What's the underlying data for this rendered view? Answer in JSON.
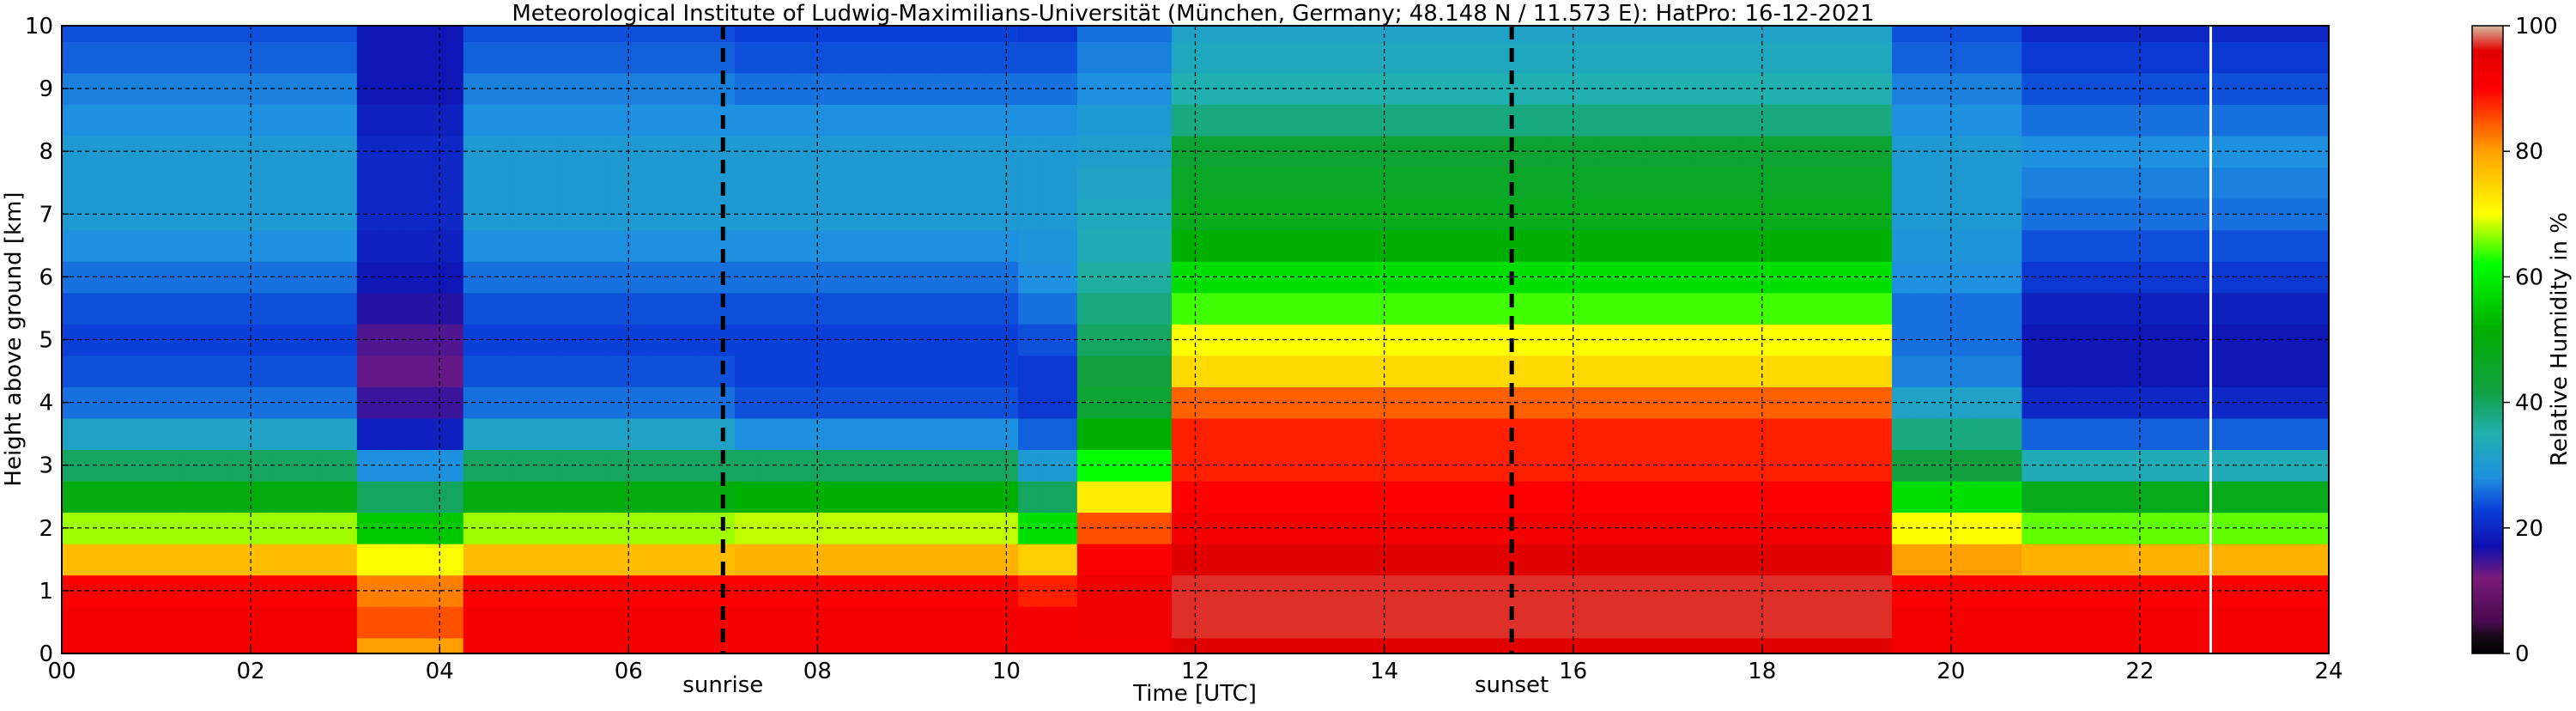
{
  "chart_data": {
    "type": "heatmap",
    "title": "Meteorological Institute of Ludwig-Maximilians-Universität (München, Germany; 48.148 N / 11.573 E):    HatPro: 16-12-2021",
    "xlabel": "Time [UTC]",
    "ylabel": "Height above ground [km]",
    "colorbar_label": "Relative Humidity in %",
    "xlim": [
      0,
      24
    ],
    "ylim": [
      0,
      10
    ],
    "clim": [
      0,
      100
    ],
    "x_ticks": [
      0,
      2,
      4,
      6,
      8,
      10,
      12,
      14,
      16,
      18,
      20,
      22,
      24
    ],
    "x_tick_labels": [
      "00",
      "02",
      "04",
      "06",
      "08",
      "10",
      "12",
      "14",
      "16",
      "18",
      "20",
      "22",
      "24"
    ],
    "y_ticks": [
      0,
      1,
      2,
      3,
      4,
      5,
      6,
      7,
      8,
      9,
      10
    ],
    "y_tick_labels": [
      "0",
      "1",
      "2",
      "3",
      "4",
      "5",
      "6",
      "7",
      "8",
      "9",
      "10"
    ],
    "colorbar_ticks": [
      0,
      20,
      40,
      60,
      80,
      100
    ],
    "colorbar_tick_labels": [
      "0",
      "20",
      "40",
      "60",
      "80",
      "100"
    ],
    "grid": true,
    "annotations": [
      {
        "x": 7.0,
        "text": "sunrise"
      },
      {
        "x": 15.35,
        "text": "sunset"
      }
    ],
    "data_gap_line_x": 22.75,
    "colormap": [
      {
        "v": 0,
        "color": "#000000"
      },
      {
        "v": 3,
        "color": "#1a0a1a"
      },
      {
        "v": 5,
        "color": "#4a0a50"
      },
      {
        "v": 12,
        "color": "#7a1a7a"
      },
      {
        "v": 17,
        "color": "#1010b0"
      },
      {
        "v": 23,
        "color": "#0a40d8"
      },
      {
        "v": 28,
        "color": "#1e90e0"
      },
      {
        "v": 35,
        "color": "#20b0b0"
      },
      {
        "v": 42,
        "color": "#10a040"
      },
      {
        "v": 52,
        "color": "#00b000"
      },
      {
        "v": 62,
        "color": "#00ff00"
      },
      {
        "v": 70,
        "color": "#ffff00"
      },
      {
        "v": 80,
        "color": "#ffa000"
      },
      {
        "v": 90,
        "color": "#ff0000"
      },
      {
        "v": 96,
        "color": "#e00000"
      },
      {
        "v": 100,
        "color": "#d8bca0"
      }
    ],
    "time_hours": [
      0,
      0.5,
      1,
      1.5,
      2,
      2.5,
      3,
      3.25,
      3.5,
      3.75,
      4,
      4.5,
      5,
      5.5,
      6,
      6.5,
      7,
      7.25,
      7.5,
      8,
      8.5,
      9,
      9.5,
      10,
      10.25,
      10.5,
      11,
      11.5,
      12,
      12.5,
      13,
      13.5,
      14,
      14.5,
      15,
      15.5,
      16,
      16.5,
      17,
      17.5,
      18,
      18.5,
      19,
      19.25,
      19.5,
      19.75,
      20,
      20.5,
      21,
      21.5,
      22,
      22.5,
      23,
      23.5,
      24
    ],
    "profiles": {
      "heights_km": [
        0,
        0.5,
        1,
        1.5,
        2,
        2.5,
        3,
        3.5,
        4,
        4.5,
        5,
        5.5,
        6,
        6.5,
        7,
        7.5,
        8,
        8.5,
        9,
        9.5,
        10
      ],
      "night_early": [
        92,
        92,
        91,
        77,
        67,
        50,
        40,
        32,
        26,
        24,
        23,
        24,
        26,
        28,
        30,
        30,
        30,
        28,
        27,
        25,
        24
      ],
      "night_dry_upper": [
        80,
        85,
        82,
        70,
        55,
        40,
        28,
        19,
        15,
        13,
        14,
        16,
        18,
        19,
        20,
        20,
        20,
        19,
        18,
        18,
        18
      ],
      "morning": [
        92,
        92,
        91,
        78,
        68,
        52,
        40,
        28,
        24,
        23,
        23,
        24,
        26,
        28,
        30,
        30,
        30,
        28,
        26,
        24,
        23
      ],
      "post_sunrise": [
        92,
        92,
        88,
        75,
        58,
        40,
        30,
        25,
        22,
        22,
        24,
        26,
        28,
        29,
        30,
        30,
        30,
        28,
        26,
        24,
        22
      ],
      "noon_rise": [
        92,
        93,
        93,
        91,
        85,
        72,
        62,
        52,
        44,
        42,
        40,
        38,
        36,
        34,
        33,
        32,
        31,
        30,
        28,
        27,
        26
      ],
      "afternoon_moist": [
        96,
        97,
        97,
        96,
        92,
        90,
        88,
        88,
        84,
        74,
        70,
        64,
        58,
        52,
        48,
        46,
        44,
        38,
        35,
        33,
        32
      ],
      "evening_decay": [
        92,
        92,
        91,
        80,
        70,
        58,
        42,
        38,
        32,
        27,
        26,
        26,
        28,
        29,
        30,
        30,
        30,
        28,
        27,
        25,
        24
      ],
      "late_night": [
        92,
        92,
        91,
        78,
        65,
        48,
        34,
        25,
        20,
        18,
        18,
        19,
        22,
        24,
        26,
        27,
        28,
        26,
        24,
        22,
        20
      ]
    },
    "profile_sequence": [
      "night_early",
      "night_early",
      "night_early",
      "night_early",
      "night_early",
      "night_early",
      "night_early",
      "night_dry_upper",
      "night_dry_upper",
      "night_dry_upper",
      "night_dry_upper",
      "night_early",
      "night_early",
      "night_early",
      "night_early",
      "night_early",
      "night_early",
      "morning",
      "morning",
      "morning",
      "morning",
      "morning",
      "morning",
      "morning",
      "post_sunrise",
      "post_sunrise",
      "noon_rise",
      "noon_rise",
      "afternoon_moist",
      "afternoon_moist",
      "afternoon_moist",
      "afternoon_moist",
      "afternoon_moist",
      "afternoon_moist",
      "afternoon_moist",
      "afternoon_moist",
      "afternoon_moist",
      "afternoon_moist",
      "afternoon_moist",
      "afternoon_moist",
      "afternoon_moist",
      "afternoon_moist",
      "afternoon_moist",
      "afternoon_moist",
      "evening_decay",
      "evening_decay",
      "evening_decay",
      "evening_decay",
      "late_night",
      "late_night",
      "late_night",
      "late_night",
      "late_night",
      "late_night",
      "late_night"
    ]
  }
}
